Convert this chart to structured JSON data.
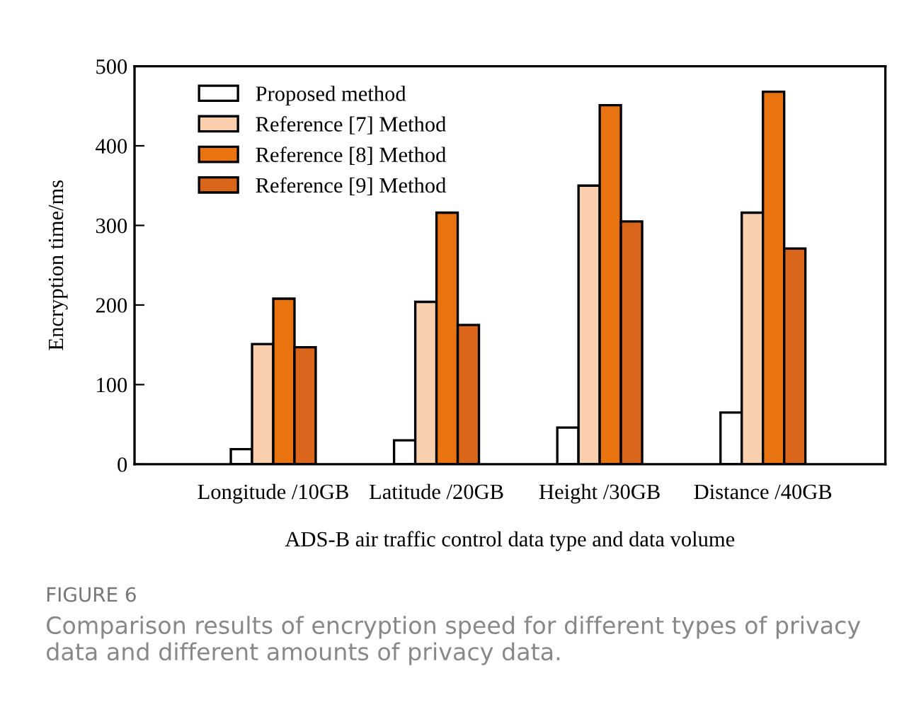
{
  "chart_data": {
    "type": "bar",
    "xlabel": "ADS-B air traffic control data type and data volume",
    "ylabel": "Encryption time/ms",
    "categories": [
      "Longitude /10GB",
      "Latitude /20GB",
      "Height /30GB",
      "Distance /40GB"
    ],
    "series": [
      {
        "name": "Proposed method",
        "color": "#ffffff",
        "values": [
          19,
          30,
          46,
          65
        ]
      },
      {
        "name": "Reference [7] Method",
        "color": "#f9cfae",
        "values": [
          151,
          204,
          350,
          316
        ]
      },
      {
        "name": "Reference [8] Method",
        "color": "#e8730f",
        "values": [
          208,
          316,
          451,
          468
        ]
      },
      {
        "name": "Reference [9] Method",
        "color": "#d9661a",
        "values": [
          147,
          175,
          305,
          271
        ]
      }
    ],
    "ylim": [
      0,
      500
    ],
    "yticks": [
      0,
      100,
      200,
      300,
      400,
      500
    ],
    "grid": false,
    "legend": "top left",
    "annotations": [
      "FIGURE 6",
      "Comparison results of encryption speed for different types of privacy data and different amounts of privacy data."
    ]
  }
}
